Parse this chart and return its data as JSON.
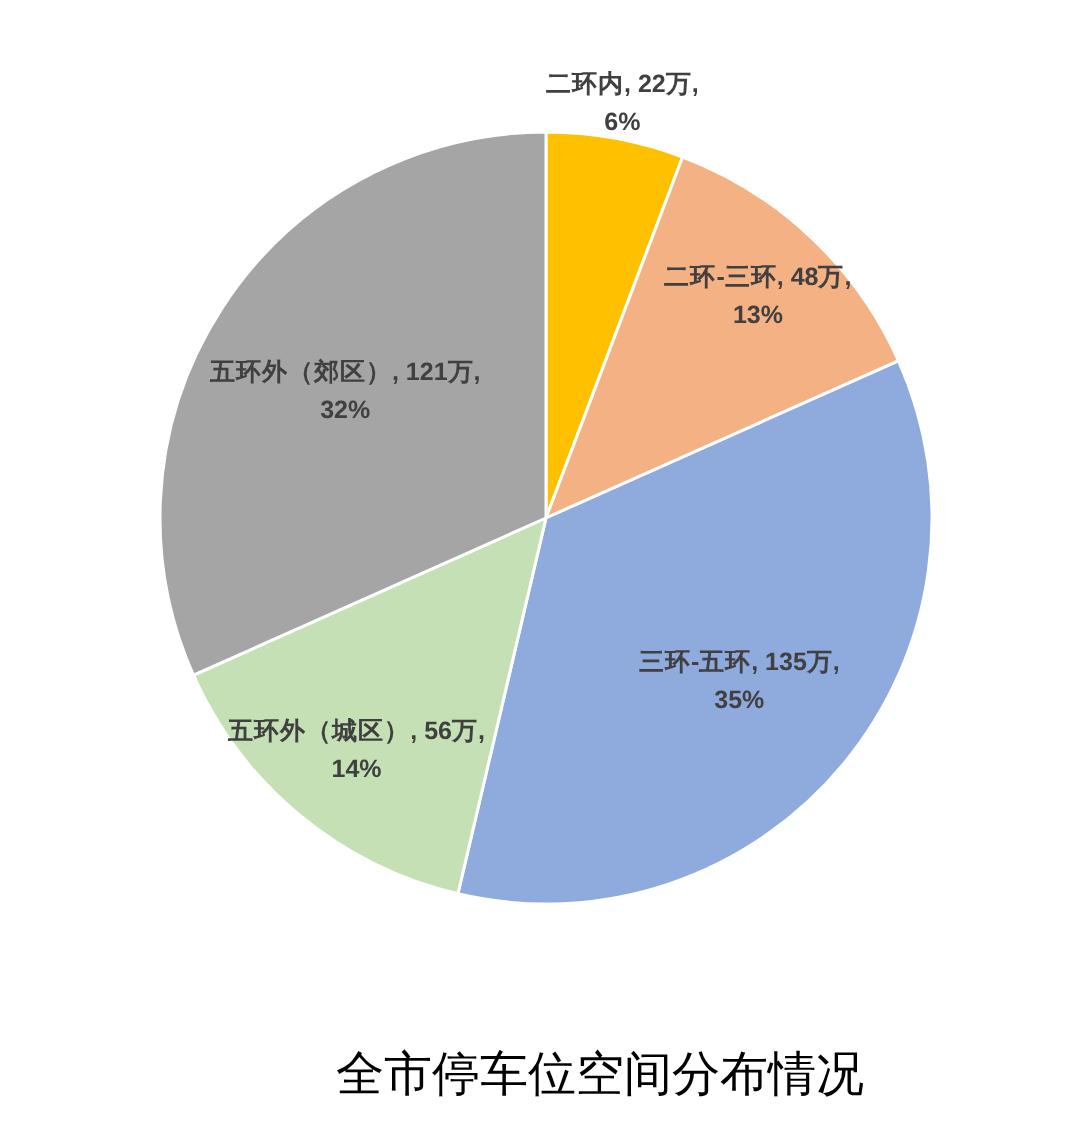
{
  "chart_data": {
    "type": "pie",
    "title": "全市停车位空间分布情况",
    "categories": [
      "二环内",
      "二环-三环",
      "三环-五环",
      "五环外（城区）",
      "五环外（郊区）"
    ],
    "values": [
      22,
      48,
      135,
      56,
      121
    ],
    "value_labels": [
      "22万, 6%",
      "48万, 13%",
      "135万, 35%",
      "56万, 14%",
      "121万, 32%"
    ],
    "colors": [
      "#ffc000",
      "#f4b183",
      "#8faadc",
      "#c5e0b4",
      "#a5a5a5"
    ],
    "legend": false
  }
}
